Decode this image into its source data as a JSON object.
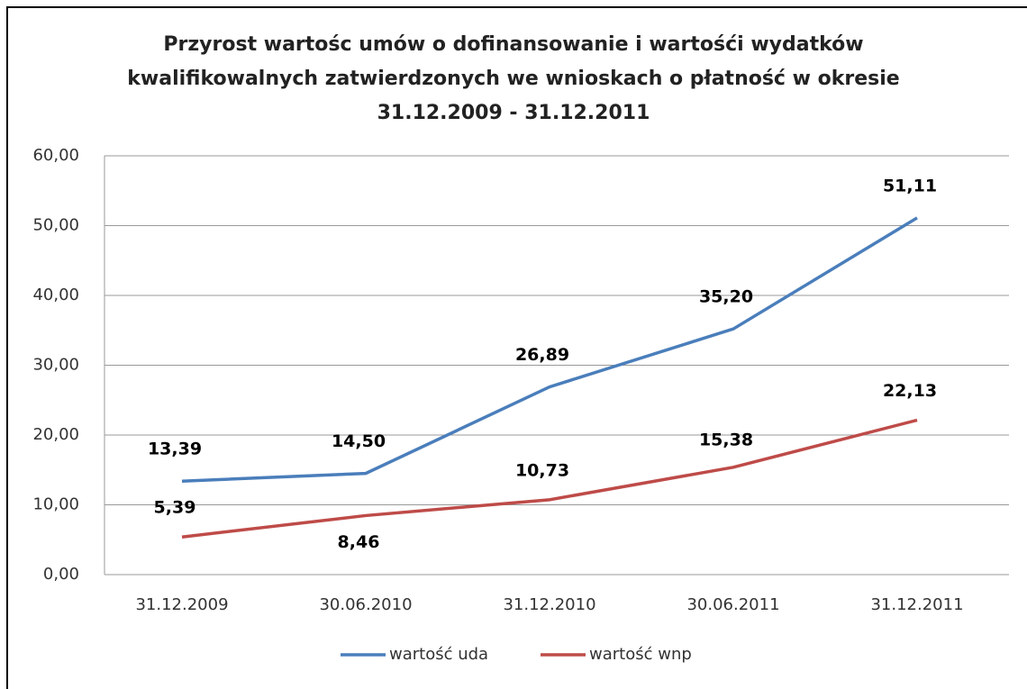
{
  "chart_data": {
    "type": "line",
    "title": [
      "Przyrost wartośc umów o dofinansowanie i wartośći wydatków",
      "kwalifikowalnych zatwierdzonych we wnioskach o płatność w okresie",
      "31.12.2009 - 31.12.2011"
    ],
    "categories": [
      "31.12.2009",
      "30.06.2010",
      "31.12.2010",
      "30.06.2011",
      "31.12.2011"
    ],
    "series": [
      {
        "name": "wartość uda",
        "color": "#4a7ebb",
        "values": [
          13.39,
          14.5,
          26.89,
          35.2,
          51.11
        ],
        "value_labels": [
          "13,39",
          "14,50",
          "26,89",
          "35,20",
          "51,11"
        ]
      },
      {
        "name": "wartość wnp",
        "color": "#be4b48",
        "values": [
          5.39,
          8.46,
          10.73,
          15.38,
          22.13
        ],
        "value_labels": [
          "5,39",
          "8,46",
          "10,73",
          "15,38",
          "22,13"
        ]
      }
    ],
    "ylim": [
      0,
      60
    ],
    "yticks": [
      {
        "value": 0,
        "label": "0,00"
      },
      {
        "value": 10,
        "label": "10,00"
      },
      {
        "value": 20,
        "label": "20,00"
      },
      {
        "value": 30,
        "label": "30,00"
      },
      {
        "value": 40,
        "label": "40,00"
      },
      {
        "value": 50,
        "label": "50,00"
      },
      {
        "value": 60,
        "label": "60,00"
      }
    ],
    "grid": true,
    "legend": "bottom"
  }
}
